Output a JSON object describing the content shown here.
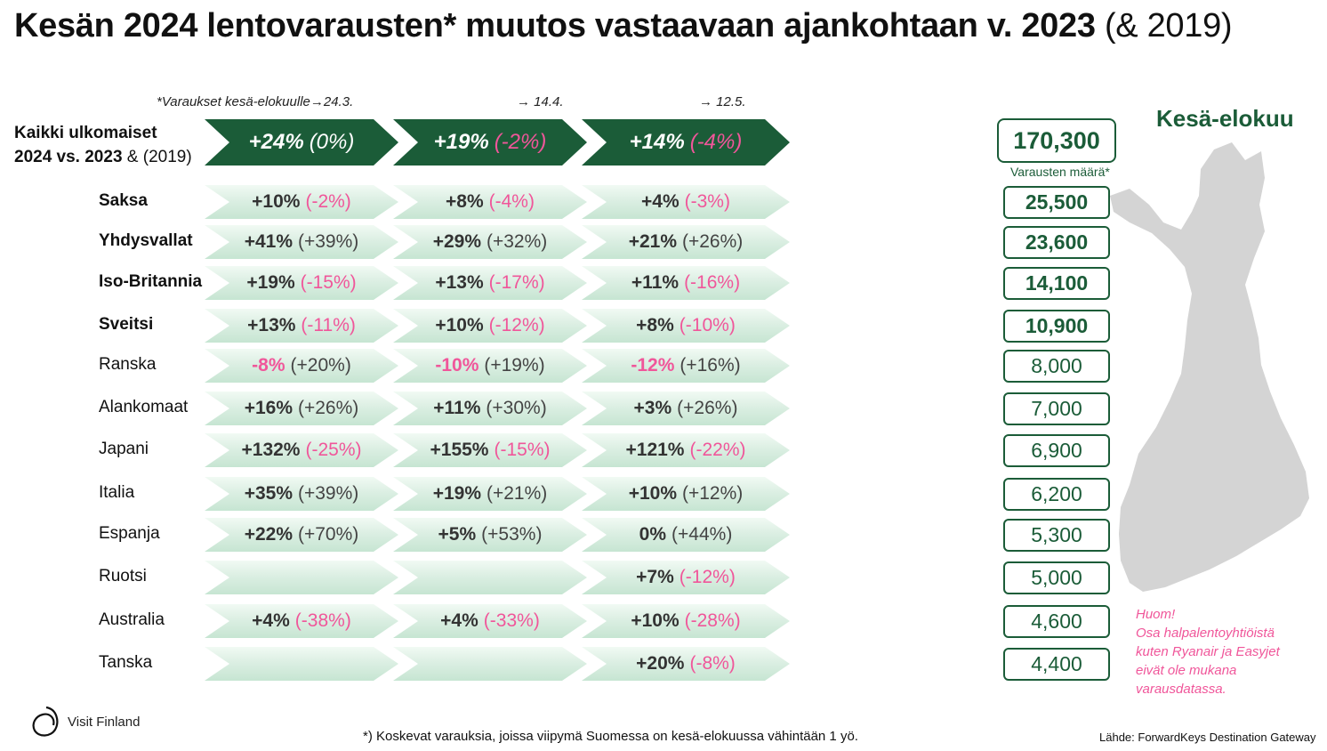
{
  "title": {
    "main": "Kesän 2024 lentovarausten* muutos vastaavaan ajankohtaan v. 2023",
    "tail": "(& 2019)"
  },
  "header_notes": {
    "prefix": "*Varaukset kesä-elokuulle",
    "arrow_icon": "right-arrow-icon",
    "dates": [
      "24.3.",
      "14.4.",
      "12.5."
    ]
  },
  "all_foreign": {
    "label_line1": "Kaikki ulkomaiset",
    "label_line2_bold": "2024 vs. 2023",
    "label_line2_rest": "& (2019)",
    "cells": [
      {
        "main": "+24%",
        "paren": "(0%)"
      },
      {
        "main": "+19%",
        "paren": "(-2%)"
      },
      {
        "main": "+14%",
        "paren": "(-4%)"
      }
    ]
  },
  "rows": [
    {
      "country": "Saksa",
      "bold": true,
      "bookings": "25,500",
      "cells": [
        {
          "main": "+10%",
          "paren": "(-2%)"
        },
        {
          "main": "+8%",
          "paren": "(-4%)"
        },
        {
          "main": "+4%",
          "paren": "(-3%)"
        }
      ]
    },
    {
      "country": "Yhdysvallat",
      "bold": true,
      "bookings": "23,600",
      "cells": [
        {
          "main": "+41%",
          "paren": "(+39%)"
        },
        {
          "main": "+29%",
          "paren": "(+32%)"
        },
        {
          "main": "+21%",
          "paren": "(+26%)"
        }
      ]
    },
    {
      "country": "Iso-Britannia",
      "bold": true,
      "bookings": "14,100",
      "cells": [
        {
          "main": "+19%",
          "paren": "(-15%)"
        },
        {
          "main": "+13%",
          "paren": "(-17%)"
        },
        {
          "main": "+11%",
          "paren": "(-16%)"
        }
      ]
    },
    {
      "country": "Sveitsi",
      "bold": true,
      "bookings": "10,900",
      "cells": [
        {
          "main": "+13%",
          "paren": "(-11%)"
        },
        {
          "main": "+10%",
          "paren": "(-12%)"
        },
        {
          "main": "+8%",
          "paren": "(-10%)"
        }
      ]
    },
    {
      "country": "Ranska",
      "bold": false,
      "bookings": "8,000",
      "cells": [
        {
          "main": "-8%",
          "paren": "(+20%)"
        },
        {
          "main": "-10%",
          "paren": "(+19%)"
        },
        {
          "main": "-12%",
          "paren": "(+16%)"
        }
      ]
    },
    {
      "country": "Alankomaat",
      "bold": false,
      "bookings": "7,000",
      "cells": [
        {
          "main": "+16%",
          "paren": "(+26%)"
        },
        {
          "main": "+11%",
          "paren": "(+30%)"
        },
        {
          "main": "+3%",
          "paren": "(+26%)"
        }
      ]
    },
    {
      "country": "Japani",
      "bold": false,
      "bookings": "6,900",
      "cells": [
        {
          "main": "+132%",
          "paren": "(-25%)"
        },
        {
          "main": "+155%",
          "paren": "(-15%)"
        },
        {
          "main": "+121%",
          "paren": "(-22%)"
        }
      ]
    },
    {
      "country": "Italia",
      "bold": false,
      "bookings": "6,200",
      "cells": [
        {
          "main": "+35%",
          "paren": "(+39%)"
        },
        {
          "main": "+19%",
          "paren": "(+21%)"
        },
        {
          "main": "+10%",
          "paren": "(+12%)"
        }
      ]
    },
    {
      "country": "Espanja",
      "bold": false,
      "bookings": "5,300",
      "cells": [
        {
          "main": "+22%",
          "paren": "(+70%)"
        },
        {
          "main": "+5%",
          "paren": "(+53%)"
        },
        {
          "main": "0%",
          "paren": "(+44%)"
        }
      ]
    },
    {
      "country": "Ruotsi",
      "bold": false,
      "bookings": "5,000",
      "cells": [
        {
          "main": "",
          "paren": ""
        },
        {
          "main": "",
          "paren": ""
        },
        {
          "main": "+7%",
          "paren": "(-12%)"
        }
      ]
    },
    {
      "country": "Australia",
      "bold": false,
      "bookings": "4,600",
      "cells": [
        {
          "main": "+4%",
          "paren": "(-38%)"
        },
        {
          "main": "+4%",
          "paren": "(-33%)"
        },
        {
          "main": "+10%",
          "paren": "(-28%)"
        }
      ]
    },
    {
      "country": "Tanska",
      "bold": false,
      "bookings": "4,400",
      "cells": [
        {
          "main": "",
          "paren": ""
        },
        {
          "main": "",
          "paren": ""
        },
        {
          "main": "+20%",
          "paren": "(-8%)"
        }
      ]
    }
  ],
  "right_panel": {
    "map_title": "Kesä-elokuu",
    "total": "170,300",
    "total_label": "Varausten määrä*",
    "map_icon": "finland-map-icon",
    "huom": [
      "Huom!",
      "Osa halpalentoyhtiöistä",
      "kuten Ryanair ja Easyjet",
      "eivät ole mukana",
      "varausdatassa."
    ]
  },
  "footnote": "*) Koskevat varauksia, joissa viipymä Suomessa on kesä-elokuussa vähintään 1 yö.",
  "source": "Lähde: ForwardKeys Destination Gateway",
  "logo_text": "Visit Finland",
  "colors": {
    "brand_green": "#1b5c38",
    "negative_pink": "#f0569a",
    "arrow_light": "#d6ecdf",
    "map_gray": "#d4d4d4"
  }
}
